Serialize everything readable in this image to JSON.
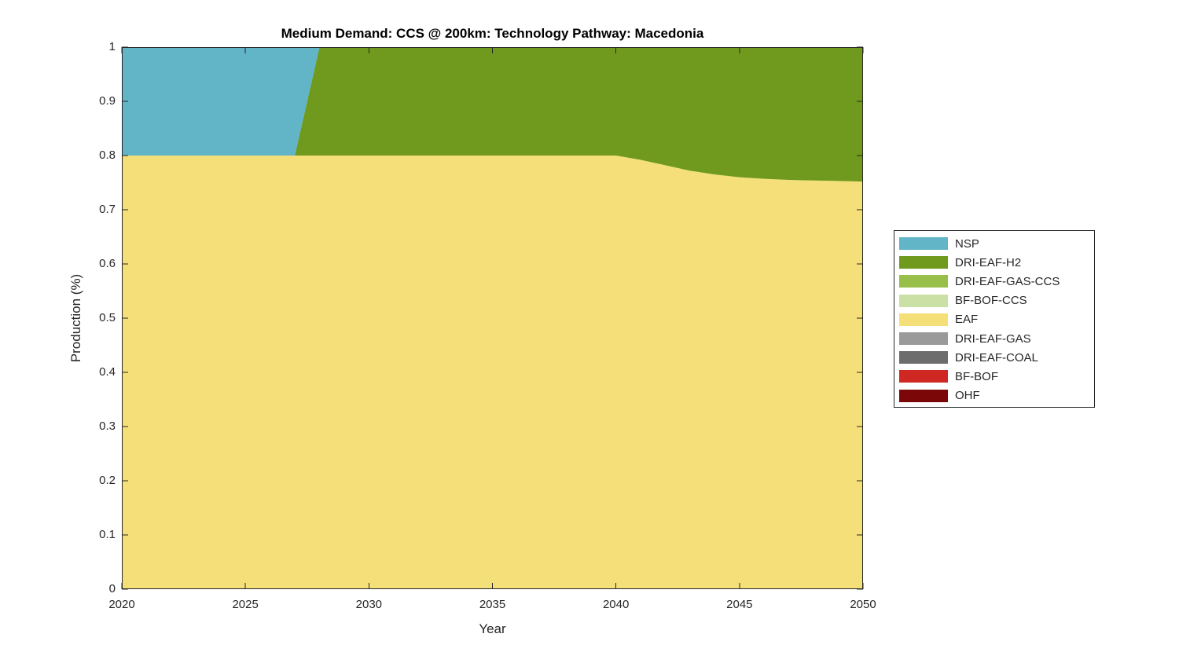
{
  "axis_color": "#262626",
  "chart_data": {
    "type": "area",
    "stacked": true,
    "title": "Medium Demand: CCS @ 200km: Technology Pathway: Macedonia",
    "xlabel": "Year",
    "ylabel": "Production (%)",
    "xlim": [
      2020,
      2050
    ],
    "ylim": [
      0,
      1
    ],
    "grid": false,
    "legend_position": "right-outside",
    "xticks": [
      2020,
      2025,
      2030,
      2035,
      2040,
      2045,
      2050
    ],
    "xtick_labels": [
      "2020",
      "2025",
      "2030",
      "2035",
      "2040",
      "2045",
      "2050"
    ],
    "yticks": [
      0,
      0.1,
      0.2,
      0.3,
      0.4,
      0.5,
      0.6,
      0.7,
      0.8,
      0.9,
      1
    ],
    "ytick_labels": [
      "0",
      "0.1",
      "0.2",
      "0.3",
      "0.4",
      "0.5",
      "0.6",
      "0.7",
      "0.8",
      "0.9",
      "1"
    ],
    "x": [
      2020,
      2021,
      2022,
      2023,
      2024,
      2025,
      2026,
      2027,
      2028,
      2029,
      2030,
      2031,
      2032,
      2033,
      2034,
      2035,
      2036,
      2037,
      2038,
      2039,
      2040,
      2041,
      2042,
      2043,
      2044,
      2045,
      2046,
      2047,
      2048,
      2049,
      2050
    ],
    "stack_order_note": "rendered stack is bottom-to-top in REVERSE of series list order",
    "series": [
      {
        "name": "NSP",
        "color": "#62B4C7",
        "values": [
          0.2,
          0.2,
          0.2,
          0.2,
          0.2,
          0.2,
          0.2,
          0.2,
          0,
          0,
          0,
          0,
          0,
          0,
          0,
          0,
          0,
          0,
          0,
          0,
          0,
          0,
          0,
          0,
          0,
          0,
          0,
          0,
          0,
          0,
          0
        ]
      },
      {
        "name": "DRI-EAF-H2",
        "color": "#6F9A1E",
        "values": [
          0,
          0,
          0,
          0,
          0,
          0,
          0,
          0,
          0.2,
          0.2,
          0.2,
          0.2,
          0.2,
          0.2,
          0.2,
          0.2,
          0.2,
          0.2,
          0.2,
          0.2,
          0.2,
          0.208,
          0.218,
          0.228,
          0.235,
          0.24,
          0.243,
          0.245,
          0.246,
          0.247,
          0.248
        ]
      },
      {
        "name": "DRI-EAF-GAS-CCS",
        "color": "#97BF4A",
        "values": [
          0,
          0,
          0,
          0,
          0,
          0,
          0,
          0,
          0,
          0,
          0,
          0,
          0,
          0,
          0,
          0,
          0,
          0,
          0,
          0,
          0,
          0,
          0,
          0,
          0,
          0,
          0,
          0,
          0,
          0,
          0
        ]
      },
      {
        "name": "BF-BOF-CCS",
        "color": "#CBE0A4",
        "values": [
          0,
          0,
          0,
          0,
          0,
          0,
          0,
          0,
          0,
          0,
          0,
          0,
          0,
          0,
          0,
          0,
          0,
          0,
          0,
          0,
          0,
          0,
          0,
          0,
          0,
          0,
          0,
          0,
          0,
          0,
          0
        ]
      },
      {
        "name": "EAF",
        "color": "#F5DF79",
        "values": [
          0.8,
          0.8,
          0.8,
          0.8,
          0.8,
          0.8,
          0.8,
          0.8,
          0.8,
          0.8,
          0.8,
          0.8,
          0.8,
          0.8,
          0.8,
          0.8,
          0.8,
          0.8,
          0.8,
          0.8,
          0.8,
          0.792,
          0.782,
          0.772,
          0.765,
          0.76,
          0.757,
          0.755,
          0.754,
          0.753,
          0.752
        ]
      },
      {
        "name": "DRI-EAF-GAS",
        "color": "#9A9A9A",
        "values": [
          0,
          0,
          0,
          0,
          0,
          0,
          0,
          0,
          0,
          0,
          0,
          0,
          0,
          0,
          0,
          0,
          0,
          0,
          0,
          0,
          0,
          0,
          0,
          0,
          0,
          0,
          0,
          0,
          0,
          0,
          0
        ]
      },
      {
        "name": "DRI-EAF-COAL",
        "color": "#6D6D6D",
        "values": [
          0,
          0,
          0,
          0,
          0,
          0,
          0,
          0,
          0,
          0,
          0,
          0,
          0,
          0,
          0,
          0,
          0,
          0,
          0,
          0,
          0,
          0,
          0,
          0,
          0,
          0,
          0,
          0,
          0,
          0,
          0
        ]
      },
      {
        "name": "BF-BOF",
        "color": "#CF2823",
        "values": [
          0,
          0,
          0,
          0,
          0,
          0,
          0,
          0,
          0,
          0,
          0,
          0,
          0,
          0,
          0,
          0,
          0,
          0,
          0,
          0,
          0,
          0,
          0,
          0,
          0,
          0,
          0,
          0,
          0,
          0,
          0
        ]
      },
      {
        "name": "OHF",
        "color": "#7C0708",
        "values": [
          0,
          0,
          0,
          0,
          0,
          0,
          0,
          0,
          0,
          0,
          0,
          0,
          0,
          0,
          0,
          0,
          0,
          0,
          0,
          0,
          0,
          0,
          0,
          0,
          0,
          0,
          0,
          0,
          0,
          0,
          0
        ]
      }
    ]
  }
}
